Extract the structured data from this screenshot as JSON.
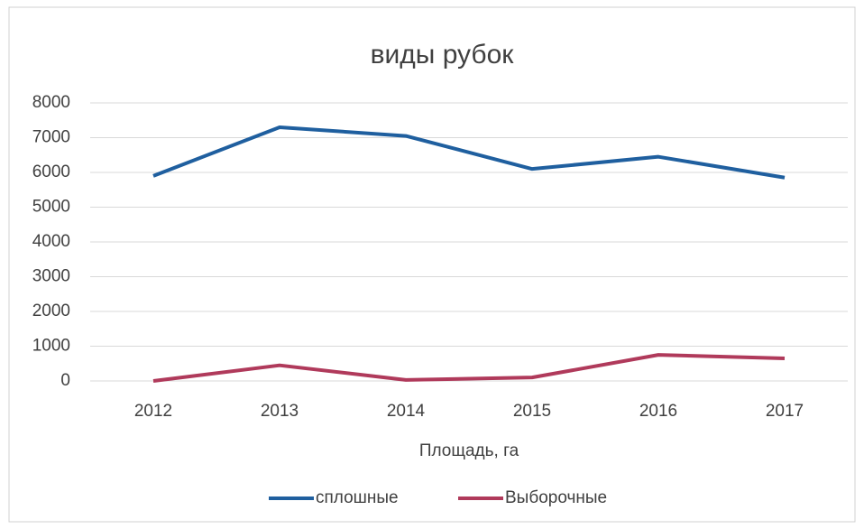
{
  "chart_data": {
    "type": "line",
    "title": "виды рубок",
    "x_label": "Площадь, га",
    "categories": [
      "2012",
      "2013",
      "2014",
      "2015",
      "2016",
      "2017"
    ],
    "series": [
      {
        "name": "сплошные",
        "color": "#1f5f9f",
        "values": [
          5900,
          7300,
          7050,
          6100,
          6450,
          5850
        ]
      },
      {
        "name": "Выборочные",
        "color": "#b03a5b",
        "values": [
          0,
          450,
          30,
          100,
          750,
          650
        ]
      }
    ],
    "ylim": [
      0,
      8000
    ],
    "yticks": [
      0,
      1000,
      2000,
      3000,
      4000,
      5000,
      6000,
      7000,
      8000
    ],
    "grid": true,
    "legend": "bottom"
  }
}
